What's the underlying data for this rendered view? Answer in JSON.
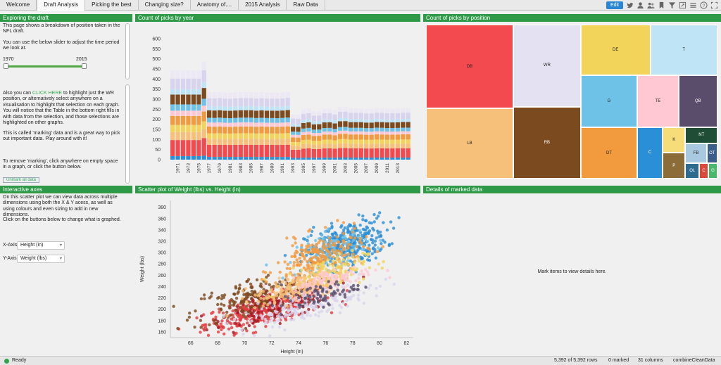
{
  "tabs": [
    "Welcome",
    "Draft Analysis",
    "Picking the best",
    "Changing size?",
    "Anatomy of....",
    "2015 Analysis",
    "Raw Data"
  ],
  "active_tab": "Draft Analysis",
  "toolbar": {
    "edit_label": "Edit",
    "icons": [
      "twitter-icon",
      "user-icon",
      "people-icon",
      "bookmark-icon",
      "filter-icon",
      "expand-icon",
      "menu-icon",
      "help-icon",
      "fullscreen-icon"
    ]
  },
  "exploring": {
    "title": "Exploring the draft",
    "intro": "This page shows a breakdown of position taken in the NFL draft.",
    "slider_text": "You can use the below slider to adjust the time period we look at.",
    "slider": {
      "min_label": "1970",
      "max_label": "2015",
      "low_fraction": 0.0,
      "high_fraction": 1.0
    },
    "marking_pre": "Also you can ",
    "marking_link": "CLICK HERE",
    "marking_post": " to highlight just the WR position, or alternatively select anywhere on a visualisation to highlight that selection on each graph. You will notice that the Table in the bottom right fills in with data from the selection, and those selections are highlighted on other graphs.",
    "marking_note": "This is called 'marking' data and is a great way to pick out important data. Play around with it!",
    "remove_text": "To remove 'marking', click anywhere on empty space in a graph, or click the button below.",
    "unmark_label": "Unmark all data"
  },
  "year_chart": {
    "title": "Count of picks by year"
  },
  "position_chart": {
    "title": "Count of picks by position"
  },
  "interactive": {
    "title": "Interactive axes",
    "text1": "On this scatter plot we can view data across multiple dimensions using both the X & Y acess, as well as using colours and even sizing to add in new dimensions.",
    "text2": "Click on the buttons below to change what is graphed.",
    "x_label": "X-Axis",
    "x_value": "Height (in)",
    "y_label": "Y-Axis",
    "y_value": "Weight (lbs)"
  },
  "scatter_chart": {
    "title": "Scatter plot of Weight (lbs) vs. Height (in)"
  },
  "details": {
    "title": "Details of marked data",
    "empty_message": "Mark items to view details here."
  },
  "status": {
    "ready": "Ready",
    "rows": "5,392 of 5,392 rows",
    "marked": "0 marked",
    "columns": "31 columns",
    "table": "combineCleanData"
  },
  "chart_data": [
    {
      "type": "bar",
      "stacked": true,
      "title": "Count of picks by year",
      "ylim": [
        0,
        600
      ],
      "yticks": [
        0,
        50,
        100,
        150,
        200,
        250,
        300,
        350,
        400,
        450,
        500,
        550,
        600
      ],
      "categories": [
        1970,
        1971,
        1972,
        1973,
        1974,
        1975,
        1976,
        1977,
        1978,
        1979,
        1980,
        1981,
        1982,
        1983,
        1984,
        1985,
        1986,
        1987,
        1988,
        1989,
        1990,
        1991,
        1992,
        1993,
        1994,
        1995,
        1996,
        1997,
        1998,
        1999,
        2000,
        2001,
        2002,
        2003,
        2004,
        2005,
        2006,
        2007,
        2008,
        2009,
        2010,
        2011,
        2012,
        2013,
        2014,
        2015
      ],
      "xtick_labels": [
        "1971",
        "1973",
        "1975",
        "1977",
        "1979",
        "1981",
        "1983",
        "1985",
        "1987",
        "1989",
        "1991",
        "1993",
        "1995",
        "1997",
        "1999",
        "2001",
        "2003",
        "2005",
        "2007",
        "2009",
        "2011",
        "2013"
      ],
      "totals": [
        442,
        442,
        442,
        442,
        442,
        442,
        487,
        335,
        334,
        336,
        333,
        332,
        334,
        336,
        336,
        336,
        333,
        335,
        333,
        333,
        332,
        334,
        337,
        224,
        223,
        249,
        254,
        240,
        241,
        253,
        254,
        246,
        261,
        262,
        255,
        255,
        255,
        252,
        252,
        256,
        255,
        253,
        253,
        254,
        256,
        256
      ],
      "series": [
        {
          "color": "#2a8fd6",
          "share": 0.04
        },
        {
          "color": "#f24a4f",
          "share": 0.18
        },
        {
          "color": "#f7c07a",
          "share": 0.09
        },
        {
          "color": "#f3d45b",
          "share": 0.08
        },
        {
          "color": "#f19a3e",
          "share": 0.1
        },
        {
          "color": "#ffc8d3",
          "share": 0.06
        },
        {
          "color": "#6ec1e7",
          "share": 0.07
        },
        {
          "color": "#7b4a1f",
          "share": 0.11
        },
        {
          "color": "#bfe4f6",
          "share": 0.06
        },
        {
          "color": "#d9d4ee",
          "share": 0.12
        },
        {
          "color": "#ece9f5",
          "share": 0.09
        }
      ]
    },
    {
      "type": "heatmap",
      "subtype": "treemap",
      "title": "Count of picks by position",
      "items": [
        {
          "label": "DB",
          "color": "#f24a4f",
          "value": 620
        },
        {
          "label": "LB",
          "color": "#f7c07a",
          "value": 520
        },
        {
          "label": "WR",
          "color": "#e4e1f3",
          "value": 470
        },
        {
          "label": "RB",
          "color": "#7b4a1f",
          "value": 410
        },
        {
          "label": "DE",
          "color": "#f3d45b",
          "value": 300
        },
        {
          "label": "T",
          "color": "#bfe4f6",
          "value": 290
        },
        {
          "label": "G",
          "color": "#6ec1e7",
          "value": 250
        },
        {
          "label": "DT",
          "color": "#f19a3e",
          "value": 245
        },
        {
          "label": "TE",
          "color": "#ffc8d3",
          "value": 180
        },
        {
          "label": "QB",
          "color": "#5a4d6b",
          "value": 170
        },
        {
          "label": "C",
          "color": "#2a8fd6",
          "value": 110
        },
        {
          "label": "K",
          "color": "#f7dc7a",
          "value": 50
        },
        {
          "label": "P",
          "color": "#8c6d3a",
          "value": 50
        },
        {
          "label": "NT",
          "color": "#1f4d36",
          "value": 45
        },
        {
          "label": "FB",
          "color": "#a8c9df",
          "value": 35
        },
        {
          "label": "OT",
          "color": "#3b5f8a",
          "value": 18
        },
        {
          "label": "OL",
          "color": "#2f6b8f",
          "value": 18
        },
        {
          "label": "C",
          "color": "#d94a3c",
          "value": 12
        },
        {
          "label": "G",
          "color": "#4ab86a",
          "value": 12
        }
      ]
    },
    {
      "type": "scatter",
      "title": "Scatter plot of Weight (lbs) vs. Height (in)",
      "xlabel": "Height (in)",
      "ylabel": "Weight (lbs)",
      "xlim": [
        64.5,
        82.5
      ],
      "ylim": [
        150,
        392
      ],
      "xticks": [
        66,
        68,
        70,
        72,
        74,
        76,
        78,
        80,
        82
      ],
      "yticks": [
        160,
        180,
        200,
        220,
        240,
        260,
        280,
        300,
        320,
        340,
        360,
        380
      ],
      "groups": [
        {
          "color": "#e23a3e",
          "center": [
            71.5,
            200
          ],
          "spread": [
            2.2,
            14
          ],
          "count": 380
        },
        {
          "color": "#a01c25",
          "center": [
            72.5,
            208
          ],
          "spread": [
            2.0,
            14
          ],
          "count": 160
        },
        {
          "color": "#7b4a1f",
          "center": [
            70.5,
            220
          ],
          "spread": [
            2.2,
            18
          ],
          "count": 180
        },
        {
          "color": "#2a8fd6",
          "center": [
            77.5,
            314
          ],
          "spread": [
            1.5,
            20
          ],
          "count": 340
        },
        {
          "color": "#6ec1e7",
          "center": [
            76.5,
            305
          ],
          "spread": [
            1.3,
            16
          ],
          "count": 120
        },
        {
          "color": "#f19a3e",
          "center": [
            75.5,
            290
          ],
          "spread": [
            1.6,
            20
          ],
          "count": 220
        },
        {
          "color": "#f3d45b",
          "center": [
            76.0,
            262
          ],
          "spread": [
            1.5,
            14
          ],
          "count": 150
        },
        {
          "color": "#f7c07a",
          "center": [
            74.0,
            238
          ],
          "spread": [
            1.6,
            12
          ],
          "count": 200
        },
        {
          "color": "#ffc8d3",
          "center": [
            76.5,
            252
          ],
          "spread": [
            1.5,
            10
          ],
          "count": 110
        },
        {
          "color": "#d9d4ee",
          "center": [
            74.5,
            205
          ],
          "spread": [
            2.5,
            12
          ],
          "count": 180
        },
        {
          "color": "#5a4d6b",
          "center": [
            75.5,
            224
          ],
          "spread": [
            1.4,
            10
          ],
          "count": 80
        }
      ]
    }
  ]
}
